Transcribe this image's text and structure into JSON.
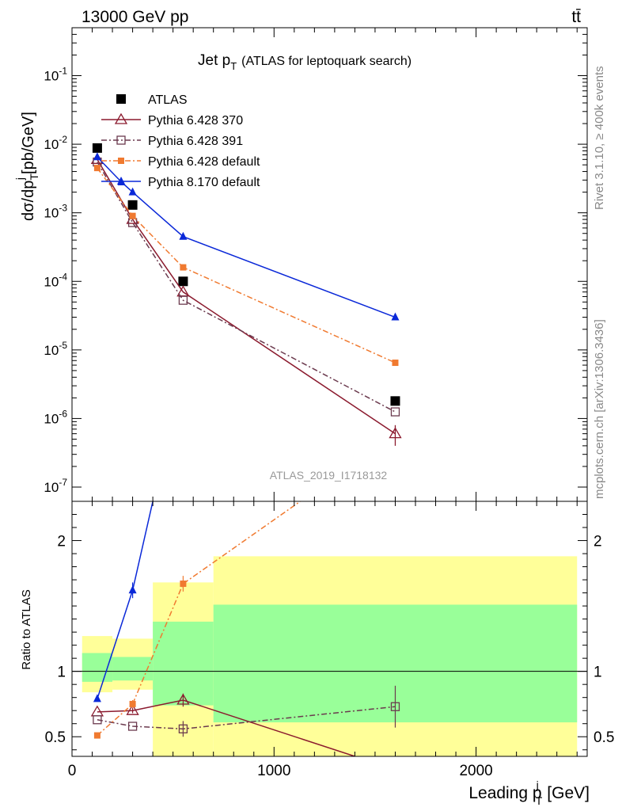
{
  "header": {
    "left": "13000 GeV pp",
    "right": "tt̄"
  },
  "side_labels": {
    "top": "Rivet 3.1.10, ≥ 400k events",
    "bottom": "mcplots.cern.ch [arXiv:1306.3436]"
  },
  "analysis_id": "ATLAS_2019_I1718132",
  "chart_data": [
    {
      "type": "scatter",
      "title": "Jet p_T (ATLAS for leptoquark search)",
      "title_main": "Jet p",
      "title_sub": "T",
      "title_rest": "(ATLAS for leptoquark search)",
      "ylabel": "dσ/dp_T^j [pb/GeV]",
      "yscale": "log",
      "ylim": [
        1e-07,
        0.5
      ],
      "xlim": [
        0,
        2550
      ],
      "y_ticks": [
        {
          "value": 1e-07,
          "exp": "-7"
        },
        {
          "value": 1e-06,
          "exp": "-6"
        },
        {
          "value": 1e-05,
          "exp": "-5"
        },
        {
          "value": 0.0001,
          "exp": "-4"
        },
        {
          "value": 0.001,
          "exp": "-3"
        },
        {
          "value": 0.01,
          "exp": "-2"
        },
        {
          "value": 0.1,
          "exp": "-1"
        }
      ],
      "legend_placement": "top-left",
      "series": [
        {
          "name": "ATLAS",
          "color": "#000000",
          "marker": "square-filled",
          "line": "none",
          "x": [
            125,
            300,
            550,
            1600
          ],
          "y": [
            0.0088,
            0.0013,
            0.0001,
            1.8e-06
          ]
        },
        {
          "name": "Pythia 6.428 370",
          "color": "#8b1a2e",
          "marker": "triangle-open",
          "line": "solid",
          "x": [
            125,
            300,
            550,
            1600
          ],
          "y": [
            0.006,
            0.0008,
            7e-05,
            6e-07
          ],
          "yerr": [
            0,
            0,
            0,
            2e-07
          ]
        },
        {
          "name": "Pythia 6.428 391",
          "color": "#6b3a4e",
          "marker": "square-open",
          "line": "dashdot",
          "x": [
            125,
            300,
            550,
            1600
          ],
          "y": [
            0.0055,
            0.00072,
            5.3e-05,
            1.25e-06
          ]
        },
        {
          "name": "Pythia 6.428 default",
          "color": "#f07a30",
          "marker": "square-filled-small",
          "line": "dashdot",
          "x": [
            125,
            300,
            550,
            1600
          ],
          "y": [
            0.0045,
            0.0009,
            0.00016,
            6.5e-06
          ]
        },
        {
          "name": "Pythia 8.170 default",
          "color": "#0a28d8",
          "marker": "triangle-filled",
          "line": "solid",
          "x": [
            125,
            245,
            300,
            550,
            1600
          ],
          "y": [
            0.0065,
            0.0028,
            0.002,
            0.00045,
            3e-05
          ]
        }
      ]
    },
    {
      "type": "scatter",
      "ylabel": "Ratio to ATLAS",
      "xlabel": "Leading p_T^j [GeV]",
      "xlabel_main": "Leading p",
      "xlabel_sup": "j",
      "xlabel_sub": "T",
      "xlabel_unit": "[GeV]",
      "ylim": [
        0.35,
        2.3
      ],
      "xlim": [
        0,
        2550
      ],
      "x_ticks": [
        0,
        1000,
        2000
      ],
      "y_ticks": [
        0.5,
        1,
        2
      ],
      "reference_line": 1,
      "bands": [
        {
          "x0": 50,
          "x1": 200,
          "yellow": [
            0.84,
            1.27
          ],
          "green": [
            0.92,
            1.14
          ]
        },
        {
          "x0": 200,
          "x1": 400,
          "yellow": [
            0.86,
            1.25
          ],
          "green": [
            0.93,
            1.11
          ]
        },
        {
          "x0": 400,
          "x1": 700,
          "yellow": [
            0.35,
            1.68
          ],
          "green": [
            0.74,
            1.38
          ]
        },
        {
          "x0": 700,
          "x1": 2500,
          "yellow": [
            0.35,
            1.88
          ],
          "green": [
            0.61,
            1.51
          ]
        }
      ],
      "series": [
        {
          "name": "Pythia 6.428 370",
          "x": [
            125,
            300,
            550,
            1400
          ],
          "y": [
            0.69,
            0.7,
            0.78,
            0.35
          ],
          "yerr": [
            0,
            0.02,
            0.05,
            0
          ]
        },
        {
          "name": "Pythia 6.428 391",
          "x": [
            125,
            300,
            550,
            1600
          ],
          "y": [
            0.63,
            0.58,
            0.56,
            0.73
          ],
          "yerr": [
            0,
            0,
            0.06,
            0.16
          ]
        },
        {
          "name": "Pythia 6.428 default",
          "x": [
            125,
            300,
            550,
            1130
          ],
          "y": [
            0.51,
            0.75,
            1.67,
            2.3
          ],
          "yerr": [
            0,
            0.03,
            0.06,
            0
          ]
        },
        {
          "name": "Pythia 8.170 default",
          "x": [
            125,
            300,
            400
          ],
          "y": [
            0.79,
            1.62,
            2.3
          ],
          "yerr": [
            0,
            0.06,
            0
          ]
        }
      ]
    }
  ]
}
